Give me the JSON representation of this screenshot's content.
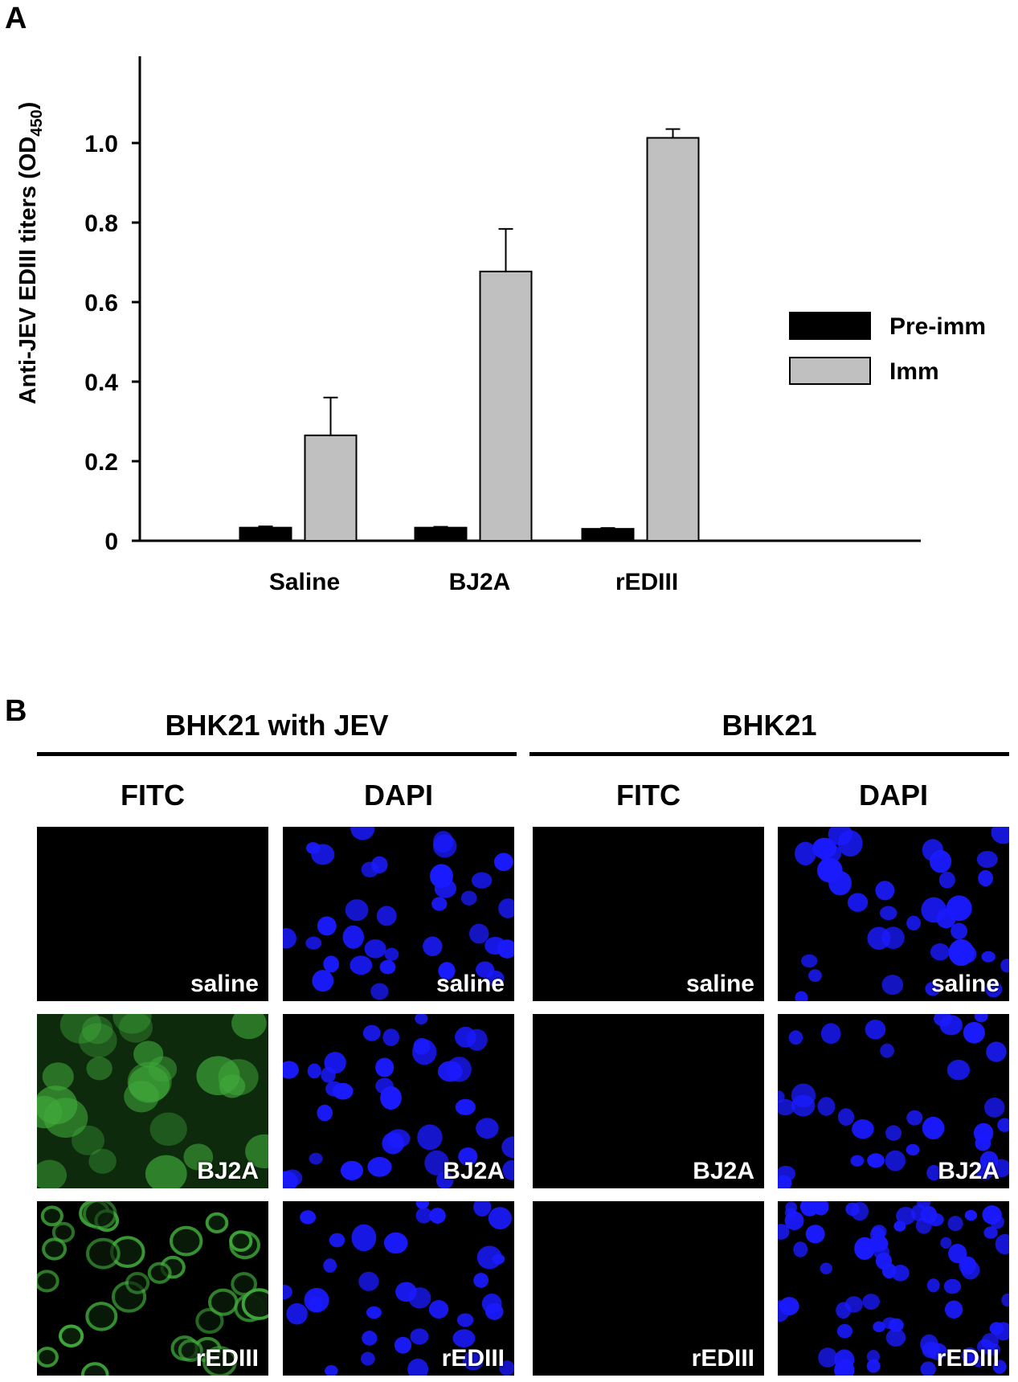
{
  "panel_a": {
    "letter": "A"
  },
  "panel_b": {
    "letter": "B",
    "groups": [
      {
        "title": "BHK21 with JEV",
        "columns": [
          "FITC",
          "DAPI"
        ]
      },
      {
        "title": "BHK21",
        "columns": [
          "FITC",
          "DAPI"
        ]
      }
    ],
    "rows": [
      "saline",
      "BJ2A",
      "rEDIII"
    ],
    "images": [
      [
        {
          "label": "saline",
          "stain": "FITC",
          "signal": "none"
        },
        {
          "label": "saline",
          "stain": "DAPI",
          "signal": "nuclei"
        },
        {
          "label": "saline",
          "stain": "FITC",
          "signal": "none"
        },
        {
          "label": "saline",
          "stain": "DAPI",
          "signal": "nuclei"
        }
      ],
      [
        {
          "label": "BJ2A",
          "stain": "FITC",
          "signal": "diffuse-green"
        },
        {
          "label": "BJ2A",
          "stain": "DAPI",
          "signal": "nuclei"
        },
        {
          "label": "BJ2A",
          "stain": "FITC",
          "signal": "none"
        },
        {
          "label": "BJ2A",
          "stain": "DAPI",
          "signal": "nuclei"
        }
      ],
      [
        {
          "label": "rEDIII",
          "stain": "FITC",
          "signal": "ring-green"
        },
        {
          "label": "rEDIII",
          "stain": "DAPI",
          "signal": "nuclei"
        },
        {
          "label": "rEDIII",
          "stain": "FITC",
          "signal": "none"
        },
        {
          "label": "rEDIII",
          "stain": "DAPI",
          "signal": "nuclei-dense"
        }
      ]
    ],
    "colors": {
      "fitc": "#3fa83a",
      "dapi": "#1a1aff",
      "background": "#000000"
    }
  },
  "chart_data": {
    "type": "bar",
    "title": "",
    "xlabel": "",
    "ylabel": "Anti-JEV EDIII titers (OD450)",
    "ylabel_parts": {
      "main": "Anti-JEV EDIII titers (OD",
      "sub": "450",
      "end": ")"
    },
    "categories": [
      "Saline",
      "BJ2A",
      "rEDIII"
    ],
    "series": [
      {
        "name": "Pre-imm",
        "color": "#000000",
        "values": [
          0.033,
          0.033,
          0.03
        ],
        "errors": [
          0.003,
          0.002,
          0.002
        ]
      },
      {
        "name": "Imm",
        "color": "#c0c0c0",
        "values": [
          0.265,
          0.677,
          1.013
        ],
        "errors": [
          0.095,
          0.107,
          0.022
        ]
      }
    ],
    "ylim": [
      0,
      1.2
    ],
    "yticks": [
      0,
      0.2,
      0.4,
      0.6,
      0.8,
      1.0
    ],
    "ytick_labels": [
      "0",
      "0.2",
      "0.4",
      "0.6",
      "0.8",
      "1.0"
    ],
    "grid": false,
    "legend": "right"
  }
}
